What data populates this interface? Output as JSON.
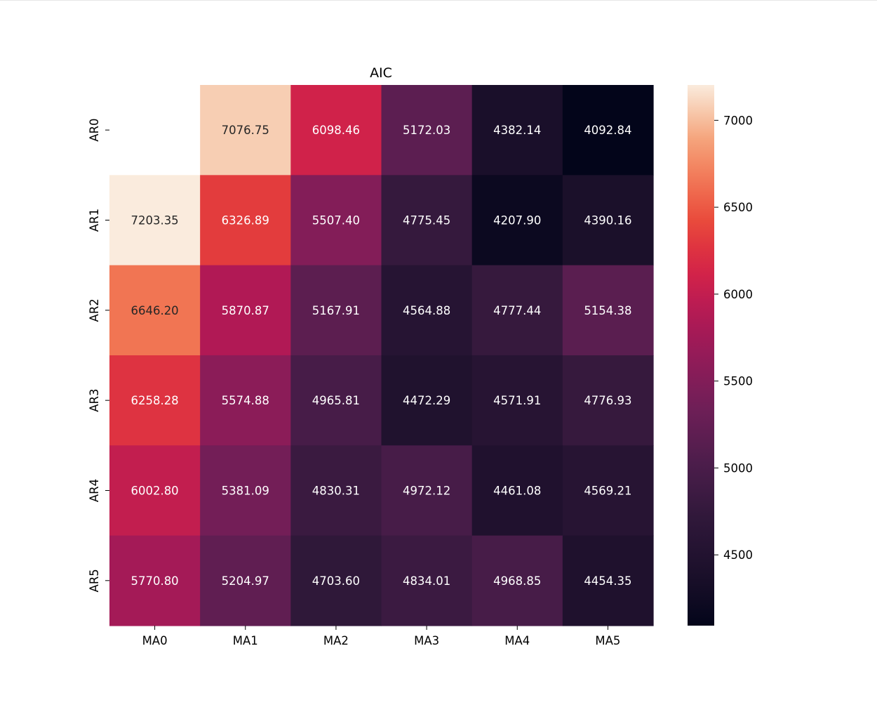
{
  "chart_data": {
    "type": "heatmap",
    "title": "AIC",
    "x_categories": [
      "MA0",
      "MA1",
      "MA2",
      "MA3",
      "MA4",
      "MA5"
    ],
    "y_categories": [
      "AR0",
      "AR1",
      "AR2",
      "AR3",
      "AR4",
      "AR5"
    ],
    "values": [
      [
        null,
        7076.75,
        6098.46,
        5172.03,
        4382.14,
        4092.84
      ],
      [
        7203.35,
        6326.89,
        5507.4,
        4775.45,
        4207.9,
        4390.16
      ],
      [
        6646.2,
        5870.87,
        5167.91,
        4564.88,
        4777.44,
        5154.38
      ],
      [
        6258.28,
        5574.88,
        4965.81,
        4472.29,
        4571.91,
        4776.93
      ],
      [
        6002.8,
        5381.09,
        4830.31,
        4972.12,
        4461.08,
        4569.21
      ],
      [
        5770.8,
        5204.97,
        4703.6,
        4834.01,
        4968.85,
        4454.35
      ]
    ],
    "value_format": "2 decimals",
    "colormap": "rocket",
    "colorbar": {
      "range": [
        4092.84,
        7203.35
      ],
      "ticks": [
        4500,
        5000,
        5500,
        6000,
        6500,
        7000
      ],
      "position": "right"
    },
    "grid": false
  }
}
